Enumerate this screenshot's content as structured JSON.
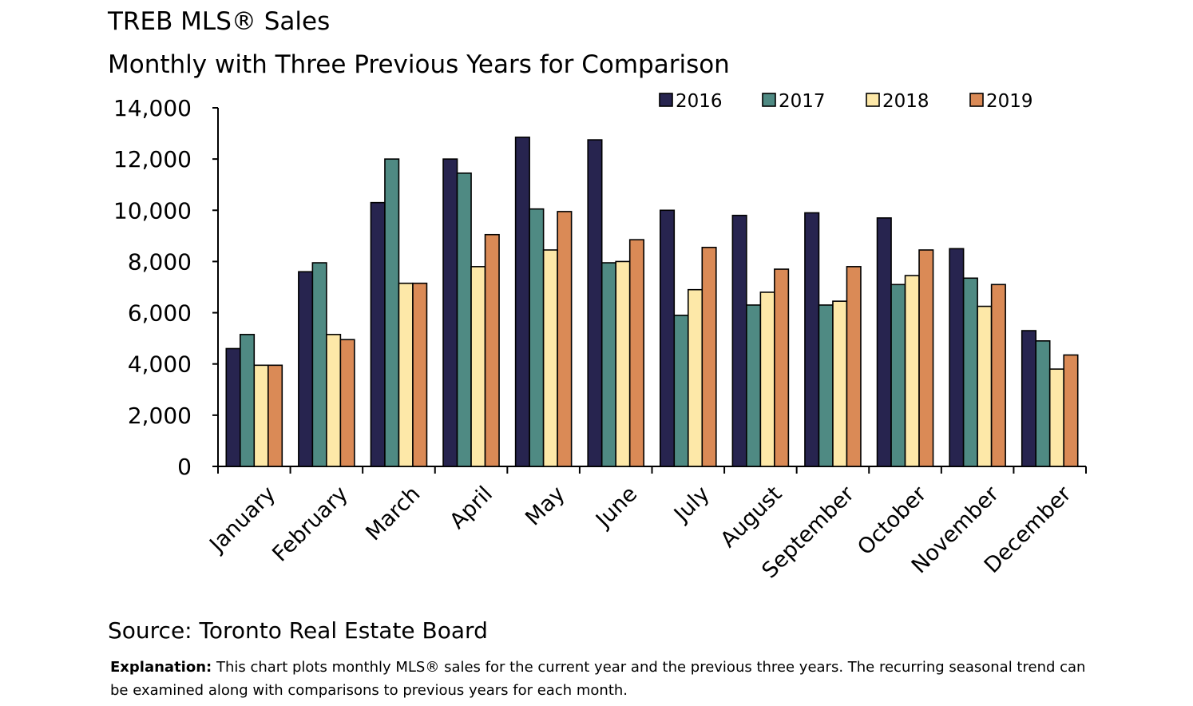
{
  "chart_data": {
    "type": "bar",
    "title": "TREB MLS® Sales",
    "subtitle": "Monthly with Three Previous Years for Comparison",
    "categories": [
      "January",
      "February",
      "March",
      "April",
      "May",
      "June",
      "July",
      "August",
      "September",
      "October",
      "November",
      "December"
    ],
    "series": [
      {
        "name": "2016",
        "color": "#27244f",
        "values": [
          4600,
          7600,
          10300,
          12000,
          12850,
          12750,
          10000,
          9800,
          9900,
          9700,
          8500,
          5300
        ]
      },
      {
        "name": "2017",
        "color": "#4f8a83",
        "values": [
          5150,
          7950,
          12000,
          11450,
          10050,
          7950,
          5900,
          6300,
          6300,
          7100,
          7350,
          4900
        ]
      },
      {
        "name": "2018",
        "color": "#fde8a8",
        "values": [
          3950,
          5150,
          7150,
          7800,
          8450,
          8000,
          6900,
          6800,
          6450,
          7450,
          6250,
          3800
        ]
      },
      {
        "name": "2019",
        "color": "#da8a56",
        "values": [
          3950,
          4950,
          7150,
          9050,
          9950,
          8850,
          8550,
          7700,
          7800,
          8450,
          7100,
          4350
        ]
      }
    ],
    "ylim": [
      0,
      14000
    ],
    "yticks": [
      "0",
      "2,000",
      "4,000",
      "6,000",
      "8,000",
      "10,000",
      "12,000",
      "14,000"
    ],
    "legend_position": "top-right",
    "grid": false
  },
  "footer": {
    "source": "Source: Toronto Real Estate Board",
    "explanation_label": "Explanation:",
    "explanation_text": " This chart plots monthly MLS® sales for the current year and the previous three years. The recurring seasonal trend can be examined along with comparisons to previous years for each month."
  }
}
